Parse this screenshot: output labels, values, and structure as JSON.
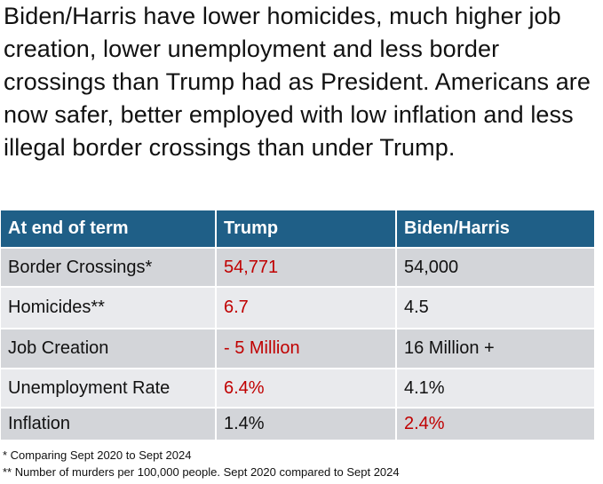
{
  "headline": "Biden/Harris have lower homicides, much higher job creation, lower unemployment and less border crossings than Trump had as President. Americans are now safer, better employed with low inflation and less illegal border crossings than under Trump.",
  "table": {
    "headers": [
      "At end of term",
      "Trump",
      "Biden/Harris"
    ],
    "rows": [
      {
        "label": "Border Crossings*",
        "trump": "54,771",
        "biden": "54,000"
      },
      {
        "label": "Homicides**",
        "trump": "6.7",
        "biden": "4.5"
      },
      {
        "label": "Job Creation",
        "trump": "- 5 Million",
        "biden": "16 Million +"
      },
      {
        "label": "Unemployment Rate",
        "trump": "6.4%",
        "biden": "4.1%"
      },
      {
        "label": "Inflation",
        "trump": "1.4%",
        "biden": "2.4%"
      }
    ]
  },
  "footnotes": [
    "* Comparing Sept 2020 to Sept 2024",
    "** Number of murders per 100,000 people.  Sept 2020 compared to Sept 2024"
  ],
  "colors": {
    "header_bg": "#1f5f87",
    "highlight_red": "#c00000",
    "row_dark": "#d3d5d9",
    "row_light": "#e9eaed"
  }
}
